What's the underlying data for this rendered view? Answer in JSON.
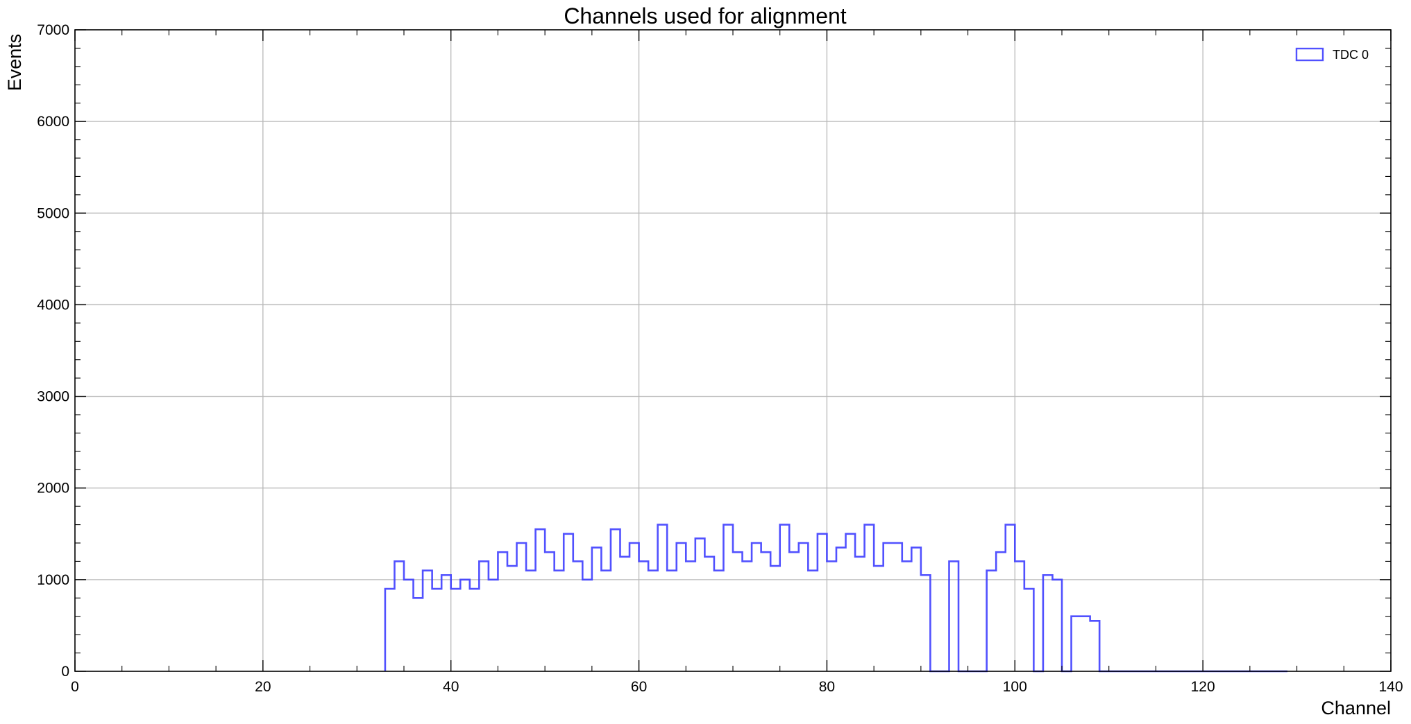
{
  "chart_data": {
    "type": "bar",
    "title": "Channels used for alignment",
    "xlabel": "Channel",
    "ylabel": "Events",
    "xlim": [
      0,
      140
    ],
    "ylim": [
      0,
      7000
    ],
    "xticks": [
      0,
      20,
      40,
      60,
      80,
      100,
      120,
      140
    ],
    "yticks": [
      0,
      1000,
      2000,
      3000,
      4000,
      5000,
      6000,
      7000
    ],
    "grid": true,
    "legend_position": "top-right",
    "bin_width": 1,
    "series": [
      {
        "name": "TDC 0",
        "color": "#3333ff",
        "x_start": 33,
        "values": [
          900,
          1200,
          1000,
          800,
          1100,
          900,
          1050,
          900,
          1000,
          900,
          1200,
          1000,
          1300,
          1150,
          1400,
          1100,
          1550,
          1300,
          1100,
          1500,
          1200,
          1000,
          1350,
          1100,
          1550,
          1250,
          1400,
          1200,
          1100,
          1600,
          1100,
          1400,
          1200,
          1450,
          1250,
          1100,
          1600,
          1300,
          1200,
          1400,
          1300,
          1150,
          1600,
          1300,
          1400,
          1100,
          1500,
          1200,
          1350,
          1500,
          1250,
          1600,
          1150,
          1400,
          1400,
          1200,
          1350,
          1050,
          0,
          0,
          1200,
          0,
          0,
          0,
          1100,
          1300,
          1600,
          1200,
          900,
          0,
          1050,
          1000,
          0,
          600,
          600,
          550,
          0,
          0,
          0,
          0,
          0,
          0,
          0,
          0,
          0,
          0,
          0,
          0,
          0,
          0,
          0,
          0,
          0,
          0,
          0,
          0
        ],
        "comment_free": true
      }
    ]
  }
}
